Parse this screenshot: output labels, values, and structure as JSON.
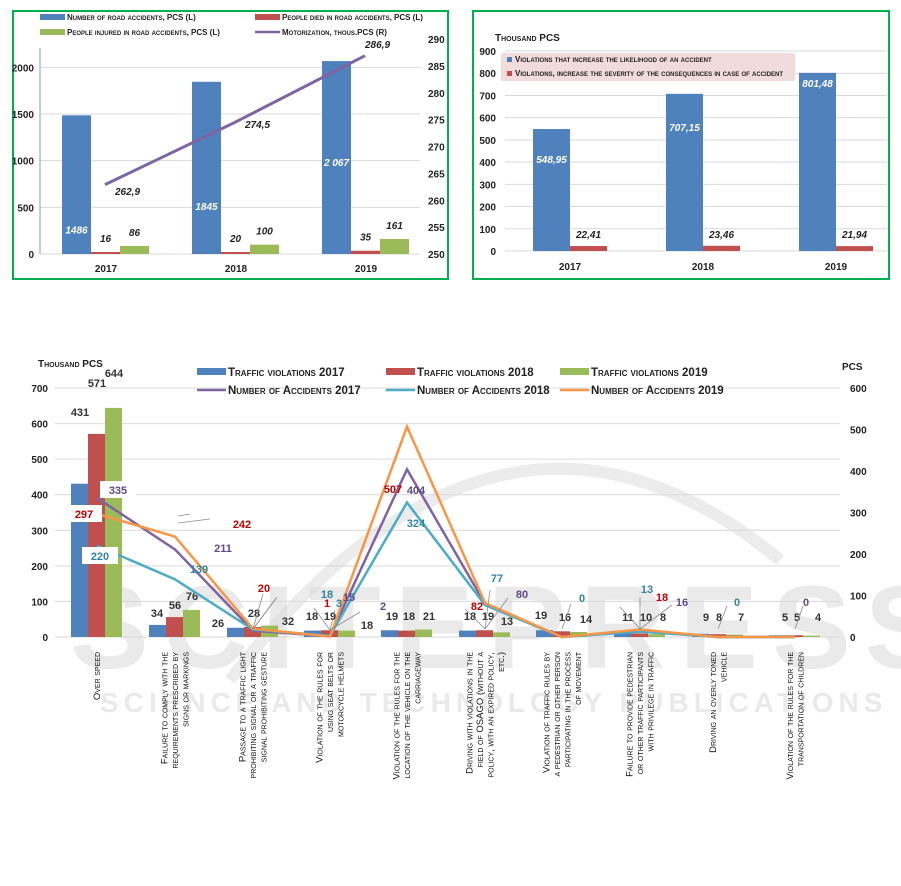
{
  "chart_data": [
    {
      "type": "bar",
      "title": "",
      "categories": [
        "2017",
        "2018",
        "2019"
      ],
      "ylim": [
        0,
        2100
      ],
      "yticks": [
        "0",
        "500",
        "1000",
        "1500",
        "2000"
      ],
      "y2lim": [
        250,
        290
      ],
      "y2ticks": [
        "250",
        "255",
        "260",
        "265",
        "270",
        "275",
        "280",
        "285",
        "290"
      ],
      "series": [
        {
          "name": "Number of road accidents, PCS (L)",
          "axis": "left",
          "kind": "bar",
          "color": "#4f81bd",
          "values": [
            1486,
            1845,
            2067
          ],
          "labels": [
            "1486",
            "1845",
            "2 067"
          ]
        },
        {
          "name": "People died in road accidents, PCS (L)",
          "axis": "left",
          "kind": "bar",
          "color": "#c0504d",
          "values": [
            16,
            20,
            35
          ],
          "labels": [
            "16",
            "20",
            "35"
          ]
        },
        {
          "name": "People injured in road accidents, PCS (L)",
          "axis": "left",
          "kind": "bar",
          "color": "#9bbb59",
          "values": [
            86,
            100,
            161
          ],
          "labels": [
            "86",
            "100",
            "161"
          ]
        },
        {
          "name": "Motorization, thous.PCS (R)",
          "axis": "right",
          "kind": "line",
          "color": "#8064a2",
          "values": [
            262.9,
            274.5,
            286.9
          ],
          "labels": [
            "262,9",
            "274,5",
            "286,9"
          ]
        }
      ]
    },
    {
      "type": "bar",
      "title": "",
      "ylabel": "Thousand PCS",
      "categories": [
        "2017",
        "2018",
        "2019"
      ],
      "ylim": [
        0,
        900
      ],
      "yticks": [
        "0",
        "100",
        "200",
        "300",
        "400",
        "500",
        "600",
        "700",
        "800",
        "900"
      ],
      "series": [
        {
          "name": "Violations that increase the likelihood of an accident",
          "color": "#4f81bd",
          "values": [
            548.95,
            707.15,
            801.48
          ],
          "labels": [
            "548,95",
            "707,15",
            "801,48"
          ]
        },
        {
          "name": "Violations, increase the severity of the consequences in case of accident",
          "color": "#c0504d",
          "values": [
            22.41,
            23.46,
            21.94
          ],
          "labels": [
            "22,41",
            "23,46",
            "21,94"
          ]
        }
      ]
    },
    {
      "type": "bar",
      "title": "",
      "ylabel": "Thousand PCS",
      "y2label": "PCS",
      "ylim": [
        0,
        700
      ],
      "yticks": [
        "0",
        "100",
        "200",
        "300",
        "400",
        "500",
        "600",
        "700"
      ],
      "y2lim": [
        0,
        600
      ],
      "y2ticks": [
        "0",
        "100",
        "200",
        "300",
        "400",
        "500",
        "600"
      ],
      "categories": [
        "Over speed",
        "Failure to comply with the requirements prescribed by signs or markings",
        "Passage to a traffic light prohibiting signal or a traffic signal prohibiting gesture",
        "Violation of the rules for using seat belts or motorcycle helmets",
        "Violation of the rules for the location of the vehicle on the carriageway",
        "Driving with violations in the field of OSAGO (without a policy, with an expired policy, etc.)",
        "Violation of traffic rules by a pedestrian or other person participating in the process of movement",
        "Failure to provide pedestrian or other traffic participants with privilege in traffic",
        "Driving an overly toned vehicle",
        "Violation of the rules for the transportation of children"
      ],
      "category_lines": [
        [
          "Over speed"
        ],
        [
          "Failure to comply with the",
          "requirements prescribed by",
          "signs or markings"
        ],
        [
          "Passage to a traffic light",
          "prohibiting signal or a traffic",
          "signal prohibiting gesture"
        ],
        [
          "Violation of the rules for",
          "using seat belts or",
          "motorcycle helmets"
        ],
        [
          "Violation of the rules for the",
          "location of the vehicle on the",
          "carriageway"
        ],
        [
          "Driving with violations in the",
          "field of OSAGO (without a",
          "policy, with an expired policy,",
          "etc.)"
        ],
        [
          "Violation of traffic rules by",
          "a pedestrian or other person",
          "participating in the process",
          "of movement"
        ],
        [
          "Failure to provide pedestrian",
          "or other traffic participants",
          "with privilege in traffic"
        ],
        [
          "Driving an overly toned",
          "vehicle"
        ],
        [
          "Violation of the rules for the",
          "transportation of children"
        ]
      ],
      "series": [
        {
          "name": "Traffic violations 2017",
          "axis": "left",
          "kind": "bar",
          "color": "#4f81bd",
          "values": [
            431,
            34,
            26,
            18,
            19,
            18,
            19,
            11,
            9,
            5
          ]
        },
        {
          "name": "Traffic violations 2018",
          "axis": "left",
          "kind": "bar",
          "color": "#c0504d",
          "values": [
            571,
            56,
            28,
            19,
            18,
            19,
            16,
            10,
            8,
            5
          ]
        },
        {
          "name": "Traffic violations 2019",
          "axis": "left",
          "kind": "bar",
          "color": "#9bbb59",
          "values": [
            644,
            76,
            32,
            18,
            21,
            13,
            14,
            8,
            7,
            4
          ]
        },
        {
          "name": "Number of Accidents 2017",
          "axis": "right",
          "kind": "line",
          "color": "#8064a2",
          "values": [
            335,
            211,
            15,
            2,
            404,
            80,
            0,
            16,
            0,
            0
          ]
        },
        {
          "name": "Number of Accidents 2018",
          "axis": "right",
          "kind": "line",
          "color": "#4bacc6",
          "values": [
            220,
            139,
            18,
            3,
            324,
            77,
            0,
            13,
            0,
            0
          ]
        },
        {
          "name": "Number of Accidents 2019",
          "axis": "right",
          "kind": "line",
          "color": "#f79646",
          "values": [
            297,
            242,
            20,
            1,
            507,
            82,
            0,
            18,
            0,
            0
          ]
        }
      ],
      "line_labels": [
        {
          "text": "335",
          "color": "#5f4a8b"
        },
        {
          "text": "297",
          "color": "#c00000"
        },
        {
          "text": "220",
          "color": "#31849b"
        },
        {
          "text": "242",
          "color": "#c00000"
        },
        {
          "text": "211",
          "color": "#5f4a8b"
        },
        {
          "text": "139",
          "color": "#31849b"
        },
        {
          "text": "20",
          "color": "#c00000"
        },
        {
          "text": "18",
          "color": "#31849b"
        },
        {
          "text": "15",
          "color": "#5f4a8b"
        },
        {
          "text": "1",
          "color": "#c00000"
        },
        {
          "text": "3",
          "color": "#31849b"
        },
        {
          "text": "2",
          "color": "#5f4a8b"
        },
        {
          "text": "507",
          "color": "#c00000"
        },
        {
          "text": "404",
          "color": "#5f4a8b"
        },
        {
          "text": "324",
          "color": "#31849b"
        },
        {
          "text": "82",
          "color": "#c00000"
        },
        {
          "text": "77",
          "color": "#31849b"
        },
        {
          "text": "80",
          "color": "#5f4a8b"
        },
        {
          "text": "0",
          "color": "#31849b"
        },
        {
          "text": "18",
          "color": "#c00000"
        },
        {
          "text": "13",
          "color": "#31849b"
        },
        {
          "text": "16",
          "color": "#5f4a8b"
        },
        {
          "text": "0",
          "color": "#31849b"
        },
        {
          "text": "0",
          "color": "#5f4a8b"
        }
      ]
    }
  ],
  "watermark": {
    "big": "SCITEPRESS",
    "sub": "SCIENCE AND TECHNOLOGY PUBLICATIONS"
  },
  "frame_color": "#00b050"
}
